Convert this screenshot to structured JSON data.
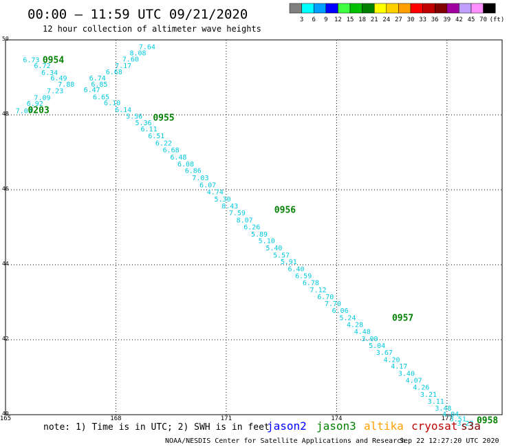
{
  "header": {
    "title": "00:00 – 11:59 UTC 09/21/2020",
    "subtitle": "12 hour collection of altimeter wave heights"
  },
  "legend": {
    "labels": [
      "3",
      "6",
      "9",
      "12",
      "15",
      "18",
      "21",
      "24",
      "27",
      "30",
      "33",
      "36",
      "39",
      "42",
      "45",
      "70"
    ],
    "unit": "(ft)",
    "colors": [
      "#808080",
      "#00ffff",
      "#00a0ff",
      "#0000ff",
      "#40ff40",
      "#00c000",
      "#008000",
      "#ffff00",
      "#ffd000",
      "#ffa000",
      "#ff0000",
      "#c00000",
      "#800000",
      "#a000a0",
      "#c0a0ff",
      "#ff90ff",
      "#000000"
    ]
  },
  "footer": {
    "note": "note: 1) Time is in UTC; 2) SWH is in feet",
    "satellites": [
      {
        "name": "jason2",
        "color": "#0000ff"
      },
      {
        "name": "jason3",
        "color": "#008000"
      },
      {
        "name": "altika",
        "color": "#ffa000"
      },
      {
        "name": "cryosat",
        "color": "#c00000"
      },
      {
        "name": "s3a",
        "color": "#800000"
      }
    ],
    "credit": "NOAA/NESDIS Center for Satellite Applications and Research",
    "timestamp": "Sep 22 12:27:20 UTC 2020"
  },
  "chart_data": {
    "type": "scatter",
    "title": "00:00 – 11:59 UTC 09/21/2020",
    "xlim": [
      165,
      178.5
    ],
    "ylim": [
      40,
      50
    ],
    "x_ticks": [
      "165",
      "168",
      "171",
      "174",
      "177"
    ],
    "y_ticks": [
      "50",
      "48",
      "46",
      "44",
      "42",
      "40"
    ],
    "wave_color": "#00c8e0",
    "time_color": "#008000",
    "wave_heights": [
      {
        "lon": 168.85,
        "lat": 49.83,
        "v": "7.64"
      },
      {
        "lon": 168.6,
        "lat": 49.66,
        "v": "8.08"
      },
      {
        "lon": 168.4,
        "lat": 49.5,
        "v": "7.60"
      },
      {
        "lon": 165.7,
        "lat": 49.48,
        "v": "6.73"
      },
      {
        "lon": 168.2,
        "lat": 49.32,
        "v": "7.17"
      },
      {
        "lon": 166.0,
        "lat": 49.32,
        "v": "6.72"
      },
      {
        "lon": 167.95,
        "lat": 49.16,
        "v": "6.68"
      },
      {
        "lon": 166.2,
        "lat": 49.14,
        "v": "6.34"
      },
      {
        "lon": 167.5,
        "lat": 48.99,
        "v": "6.74"
      },
      {
        "lon": 166.45,
        "lat": 48.99,
        "v": "6.49"
      },
      {
        "lon": 167.55,
        "lat": 48.83,
        "v": "6.85"
      },
      {
        "lon": 166.65,
        "lat": 48.83,
        "v": "7.88"
      },
      {
        "lon": 167.35,
        "lat": 48.68,
        "v": "6.47"
      },
      {
        "lon": 166.35,
        "lat": 48.65,
        "v": "7.23"
      },
      {
        "lon": 167.6,
        "lat": 48.49,
        "v": "6.65"
      },
      {
        "lon": 166.0,
        "lat": 48.47,
        "v": "7.09"
      },
      {
        "lon": 167.9,
        "lat": 48.33,
        "v": "6.10"
      },
      {
        "lon": 165.8,
        "lat": 48.31,
        "v": "6.92"
      },
      {
        "lon": 168.2,
        "lat": 48.15,
        "v": "6.14"
      },
      {
        "lon": 165.5,
        "lat": 48.12,
        "v": "7.09"
      },
      {
        "lon": 168.5,
        "lat": 47.97,
        "v": "5.56"
      },
      {
        "lon": 168.75,
        "lat": 47.8,
        "v": "5.36"
      },
      {
        "lon": 168.9,
        "lat": 47.63,
        "v": "6.11"
      },
      {
        "lon": 169.1,
        "lat": 47.45,
        "v": "6.51"
      },
      {
        "lon": 169.3,
        "lat": 47.26,
        "v": "6.22"
      },
      {
        "lon": 169.5,
        "lat": 47.07,
        "v": "6.68"
      },
      {
        "lon": 169.7,
        "lat": 46.88,
        "v": "6.48"
      },
      {
        "lon": 169.9,
        "lat": 46.7,
        "v": "6.08"
      },
      {
        "lon": 170.1,
        "lat": 46.52,
        "v": "6.86"
      },
      {
        "lon": 170.3,
        "lat": 46.33,
        "v": "7.03"
      },
      {
        "lon": 170.5,
        "lat": 46.14,
        "v": "6.07"
      },
      {
        "lon": 170.7,
        "lat": 45.95,
        "v": "4.74"
      },
      {
        "lon": 170.9,
        "lat": 45.76,
        "v": "5.30"
      },
      {
        "lon": 171.1,
        "lat": 45.58,
        "v": "8.43"
      },
      {
        "lon": 171.3,
        "lat": 45.39,
        "v": "7.59"
      },
      {
        "lon": 171.5,
        "lat": 45.2,
        "v": "8.07"
      },
      {
        "lon": 171.7,
        "lat": 45.02,
        "v": "6.26"
      },
      {
        "lon": 171.9,
        "lat": 44.83,
        "v": "5.89"
      },
      {
        "lon": 172.1,
        "lat": 44.65,
        "v": "5.10"
      },
      {
        "lon": 172.3,
        "lat": 44.46,
        "v": "5.40"
      },
      {
        "lon": 172.5,
        "lat": 44.27,
        "v": "5.57"
      },
      {
        "lon": 172.7,
        "lat": 44.09,
        "v": "5.91"
      },
      {
        "lon": 172.9,
        "lat": 43.9,
        "v": "6.40"
      },
      {
        "lon": 173.1,
        "lat": 43.72,
        "v": "6.59"
      },
      {
        "lon": 173.3,
        "lat": 43.53,
        "v": "6.78"
      },
      {
        "lon": 173.5,
        "lat": 43.34,
        "v": "7.12"
      },
      {
        "lon": 173.7,
        "lat": 43.16,
        "v": "6.70"
      },
      {
        "lon": 173.9,
        "lat": 42.97,
        "v": "7.70"
      },
      {
        "lon": 174.1,
        "lat": 42.79,
        "v": "6.06"
      },
      {
        "lon": 174.3,
        "lat": 42.6,
        "v": "5.24"
      },
      {
        "lon": 174.5,
        "lat": 42.41,
        "v": "4.28"
      },
      {
        "lon": 174.7,
        "lat": 42.23,
        "v": "4.48"
      },
      {
        "lon": 174.9,
        "lat": 42.04,
        "v": "3.09"
      },
      {
        "lon": 175.1,
        "lat": 41.85,
        "v": "5.04"
      },
      {
        "lon": 175.3,
        "lat": 41.67,
        "v": "3.67"
      },
      {
        "lon": 175.5,
        "lat": 41.48,
        "v": "4.20"
      },
      {
        "lon": 175.7,
        "lat": 41.3,
        "v": "4.17"
      },
      {
        "lon": 175.9,
        "lat": 41.11,
        "v": "3.40"
      },
      {
        "lon": 176.1,
        "lat": 40.93,
        "v": "4.07"
      },
      {
        "lon": 176.3,
        "lat": 40.74,
        "v": "4.26"
      },
      {
        "lon": 176.5,
        "lat": 40.55,
        "v": "3.21"
      },
      {
        "lon": 176.7,
        "lat": 40.37,
        "v": "3.11"
      },
      {
        "lon": 176.9,
        "lat": 40.18,
        "v": "3.48"
      },
      {
        "lon": 177.1,
        "lat": 40.03,
        "v": "4.04"
      },
      {
        "lon": 177.3,
        "lat": 39.9,
        "v": "3.51"
      },
      {
        "lon": 177.5,
        "lat": 39.78,
        "v": "3.22"
      }
    ],
    "time_labels": [
      {
        "lon": 166.3,
        "lat": 49.48,
        "v": "0954"
      },
      {
        "lon": 165.9,
        "lat": 48.14,
        "v": "0203"
      },
      {
        "lon": 169.3,
        "lat": 47.94,
        "v": "0955"
      },
      {
        "lon": 172.6,
        "lat": 45.48,
        "v": "0956"
      },
      {
        "lon": 175.8,
        "lat": 42.6,
        "v": "0957"
      },
      {
        "lon": 178.1,
        "lat": 39.86,
        "v": "0958"
      }
    ]
  }
}
